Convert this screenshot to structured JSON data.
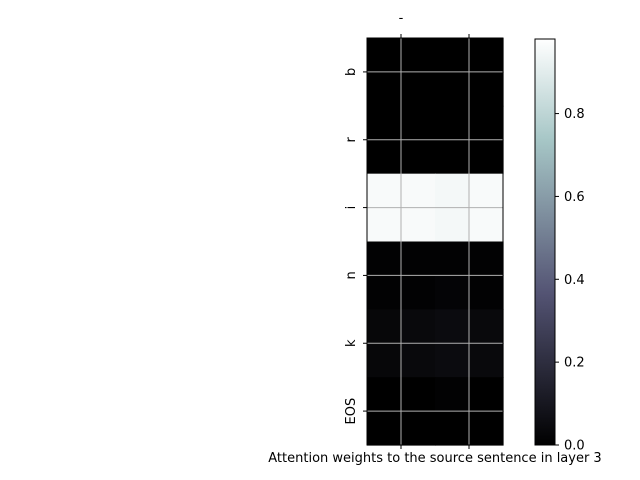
{
  "chart_data": {
    "type": "heatmap",
    "xlabel": "Attention weights to the source sentence in layer 3",
    "x_tick_labels": [
      "-"
    ],
    "y_tick_labels": [
      "b",
      "r",
      "i",
      "n",
      "k",
      "EOS"
    ],
    "grid": true,
    "colormap": "bone",
    "colorbar": {
      "range": [
        0.0,
        0.98
      ],
      "ticks": [
        0.0,
        0.2,
        0.4,
        0.6,
        0.8
      ],
      "tick_labels": [
        "0.0",
        "0.2",
        "0.4",
        "0.6",
        "0.8"
      ]
    },
    "rows": 12,
    "cols": 4,
    "values": [
      [
        0.0,
        0.0,
        0.0,
        0.0
      ],
      [
        0.0,
        0.0,
        0.0,
        0.0
      ],
      [
        0.0,
        0.0,
        0.0,
        0.0
      ],
      [
        0.0,
        0.0,
        0.0,
        0.0
      ],
      [
        0.98,
        0.98,
        0.97,
        0.98
      ],
      [
        0.98,
        0.98,
        0.97,
        0.98
      ],
      [
        0.01,
        0.01,
        0.01,
        0.01
      ],
      [
        0.01,
        0.01,
        0.02,
        0.01
      ],
      [
        0.03,
        0.04,
        0.05,
        0.04
      ],
      [
        0.03,
        0.04,
        0.05,
        0.04
      ],
      [
        0.0,
        0.0,
        0.01,
        0.0
      ],
      [
        0.0,
        0.0,
        0.0,
        0.0
      ]
    ]
  }
}
